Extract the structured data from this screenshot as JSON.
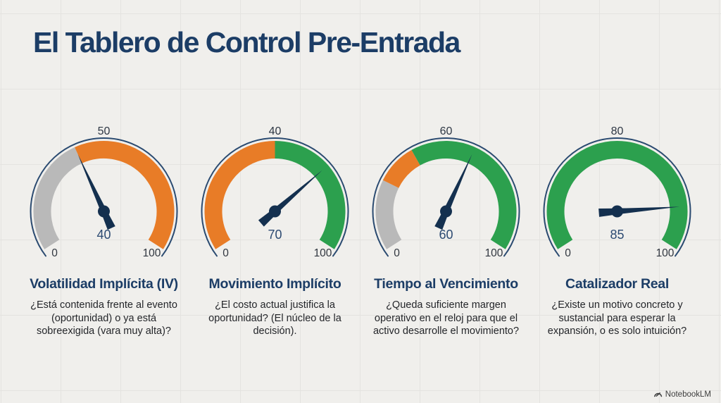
{
  "title": "El Tablero de Control Pre-Entrada",
  "watermark": {
    "label": "NotebookLM",
    "icon": "notebooklm-logo"
  },
  "colors": {
    "background": "#f0efec",
    "grid_line": "#e4e3e0",
    "navy_title": "#1c3d66",
    "gauge_outline": "#2a4a70",
    "needle": "#14304f",
    "value_text": "#2c4a72",
    "scale_text": "#30363f",
    "orange": "#e87c27",
    "green": "#2ca04e",
    "gray": "#b9b9b9"
  },
  "chart_data": [
    {
      "type": "gauge",
      "name": "Volatilidad Implícita (IV)",
      "description": "¿Está contenida frente al evento (oportunidad) o ya está sobreexigida (vara muy alta)?",
      "min": 0,
      "max": 100,
      "min_label": "0",
      "max_label": "100",
      "top_label": "50",
      "value": 40,
      "value_label": "40",
      "segments": [
        {
          "from": 0,
          "to": 40,
          "color": "#b9b9b9"
        },
        {
          "from": 40,
          "to": 100,
          "color": "#e87c27"
        }
      ]
    },
    {
      "type": "gauge",
      "name": "Movimiento Implícito",
      "description": "¿El costo actual justifica la oportunidad? (El núcleo de la decisión).",
      "min": 0,
      "max": 100,
      "min_label": "0",
      "max_label": "100",
      "top_label": "40",
      "value": 70,
      "value_label": "70",
      "segments": [
        {
          "from": 0,
          "to": 50,
          "color": "#e87c27"
        },
        {
          "from": 50,
          "to": 100,
          "color": "#2ca04e"
        }
      ]
    },
    {
      "type": "gauge",
      "name": "Tiempo al Vencimiento",
      "description": "¿Queda suficiente margen operativo en el reloj para que el activo desarrolle el movimiento?",
      "min": 0,
      "max": 100,
      "min_label": "0",
      "max_label": "100",
      "top_label": "60",
      "value": 60,
      "value_label": "60",
      "segments": [
        {
          "from": 0,
          "to": 24,
          "color": "#b9b9b9"
        },
        {
          "from": 24,
          "to": 38,
          "color": "#e87c27"
        },
        {
          "from": 38,
          "to": 100,
          "color": "#2ca04e"
        }
      ]
    },
    {
      "type": "gauge",
      "name": "Catalizador Real",
      "description": "¿Existe un motivo concreto y sustancial para esperar la expansión, o es solo intuición?",
      "min": 0,
      "max": 100,
      "min_label": "0",
      "max_label": "100",
      "top_label": "80",
      "value": 85,
      "value_label": "85",
      "segments": [
        {
          "from": 0,
          "to": 100,
          "color": "#2ca04e"
        }
      ]
    }
  ]
}
